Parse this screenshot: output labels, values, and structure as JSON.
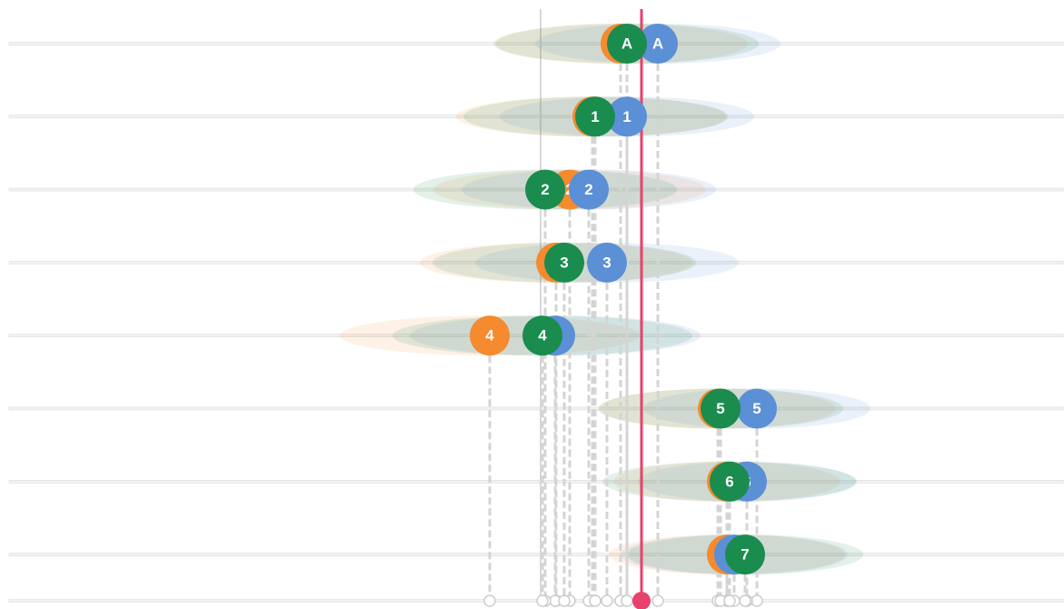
{
  "chart_data": {
    "type": "dot",
    "categories": [
      "A",
      "1",
      "2",
      "3",
      "4",
      "5",
      "6",
      "7"
    ],
    "xlim": [
      0,
      1171
    ],
    "reference_x": 595,
    "marker_x": 706,
    "marker_color": "#e8416b",
    "series": [
      {
        "name": "orange",
        "color": "#f58a2e",
        "values": [
          683,
          652,
          627,
          612,
          539,
          790,
          800,
          800
        ],
        "spread": [
          140,
          150,
          150,
          150,
          165,
          130,
          125,
          130
        ]
      },
      {
        "name": "blue",
        "color": "#5b8fd6",
        "values": [
          724,
          690,
          648,
          668,
          611,
          833,
          822,
          808
        ],
        "spread": [
          135,
          140,
          140,
          145,
          160,
          125,
          120,
          125
        ]
      },
      {
        "name": "green",
        "color": "#1a8c4e",
        "values": [
          690,
          655,
          600,
          621,
          597,
          793,
          803,
          820
        ],
        "spread": [
          145,
          145,
          145,
          145,
          165,
          135,
          140,
          130
        ]
      }
    ]
  }
}
